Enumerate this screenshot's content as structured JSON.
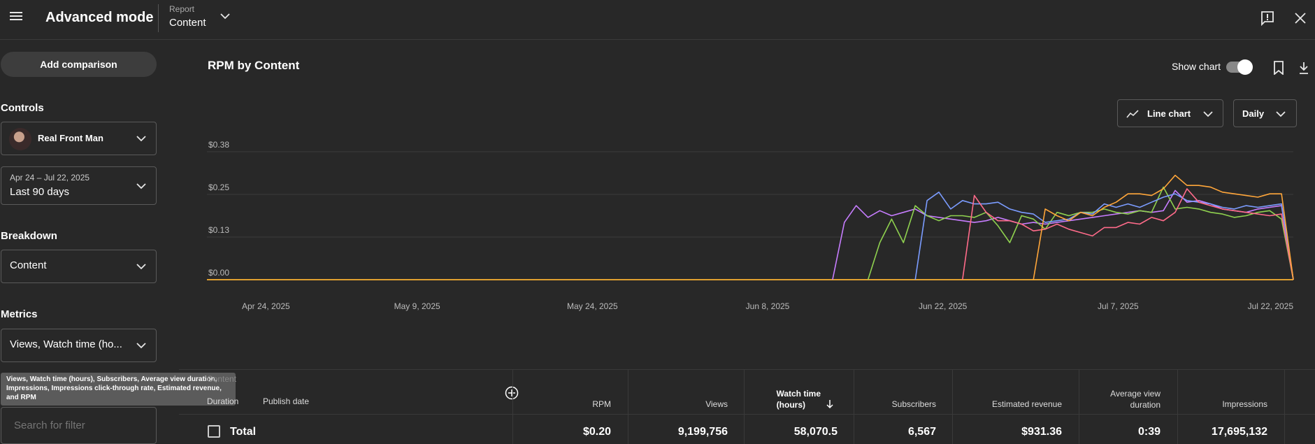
{
  "header": {
    "app_title": "Advanced mode",
    "report_label": "Report",
    "report_value": "Content"
  },
  "sidebar": {
    "add_comparison": "Add comparison",
    "controls_heading": "Controls",
    "channel_name": "Real Front Man",
    "date_range": "Apr 24 – Jul 22, 2025",
    "date_preset": "Last 90 days",
    "breakdown_heading": "Breakdown",
    "breakdown_value": "Content",
    "metrics_heading": "Metrics",
    "metrics_value": "Views, Watch time (ho...",
    "metrics_tooltip": "Views, Watch time (hours), Subscribers, Average view duration, Impressions, Impressions click-through rate, Estimated revenue, and RPM",
    "search_placeholder": "Search for filter"
  },
  "chart_panel": {
    "title": "RPM by Content",
    "show_chart_label": "Show chart",
    "chart_type_label": "Line chart",
    "interval_label": "Daily"
  },
  "chart_data": {
    "type": "line",
    "title": "RPM by Content",
    "ylim": [
      0,
      0.38
    ],
    "y_ticks": [
      "$0.38",
      "$0.25",
      "$0.13",
      "$0.00"
    ],
    "x_tick_labels": [
      "Apr 24, 2025",
      "May 9, 2025",
      "May 24, 2025",
      "Jun 8, 2025",
      "Jun 22, 2025",
      "Jul 7, 2025",
      "Jul 22, 2025"
    ],
    "x_start": "2025-04-24",
    "x_end": "2025-07-22",
    "grid": true,
    "series": [
      {
        "color": "#c77dff",
        "points": [
          [
            "2025-06-13",
            0
          ],
          [
            "2025-06-14",
            0.17
          ],
          [
            "2025-06-15",
            0.22
          ],
          [
            "2025-06-16",
            0.185
          ],
          [
            "2025-06-17",
            0.205
          ],
          [
            "2025-06-18",
            0.19
          ],
          [
            "2025-06-19",
            0.2
          ],
          [
            "2025-06-20",
            0.21
          ],
          [
            "2025-06-21",
            0.19
          ],
          [
            "2025-06-22",
            0.185
          ],
          [
            "2025-06-23",
            0.18
          ],
          [
            "2025-06-24",
            0.175
          ],
          [
            "2025-06-25",
            0.17
          ],
          [
            "2025-06-26",
            0.175
          ],
          [
            "2025-06-27",
            0.185
          ],
          [
            "2025-06-28",
            0.175
          ],
          [
            "2025-06-29",
            0.165
          ],
          [
            "2025-06-30",
            0.17
          ],
          [
            "2025-07-01",
            0.165
          ],
          [
            "2025-07-02",
            0.17
          ],
          [
            "2025-07-03",
            0.175
          ],
          [
            "2025-07-04",
            0.18
          ],
          [
            "2025-07-05",
            0.185
          ],
          [
            "2025-07-06",
            0.19
          ],
          [
            "2025-07-07",
            0.195
          ],
          [
            "2025-07-08",
            0.2
          ],
          [
            "2025-07-09",
            0.205
          ],
          [
            "2025-07-10",
            0.2
          ],
          [
            "2025-07-11",
            0.205
          ],
          [
            "2025-07-12",
            0.265
          ],
          [
            "2025-07-13",
            0.23
          ],
          [
            "2025-07-14",
            0.235
          ],
          [
            "2025-07-15",
            0.225
          ],
          [
            "2025-07-16",
            0.21
          ],
          [
            "2025-07-17",
            0.205
          ],
          [
            "2025-07-18",
            0.2
          ],
          [
            "2025-07-19",
            0.21
          ],
          [
            "2025-07-20",
            0.215
          ],
          [
            "2025-07-21",
            0.22
          ],
          [
            "2025-07-22",
            0
          ]
        ]
      },
      {
        "color": "#8fd14f",
        "points": [
          [
            "2025-06-16",
            0
          ],
          [
            "2025-06-17",
            0.11
          ],
          [
            "2025-06-18",
            0.18
          ],
          [
            "2025-06-19",
            0.11
          ],
          [
            "2025-06-20",
            0.22
          ],
          [
            "2025-06-21",
            0.19
          ],
          [
            "2025-06-22",
            0.175
          ],
          [
            "2025-06-23",
            0.19
          ],
          [
            "2025-06-24",
            0.19
          ],
          [
            "2025-06-25",
            0.185
          ],
          [
            "2025-06-26",
            0.2
          ],
          [
            "2025-06-27",
            0.16
          ],
          [
            "2025-06-28",
            0.11
          ],
          [
            "2025-06-29",
            0.19
          ],
          [
            "2025-06-30",
            0.18
          ],
          [
            "2025-07-01",
            0.15
          ],
          [
            "2025-07-02",
            0.2
          ],
          [
            "2025-07-03",
            0.19
          ],
          [
            "2025-07-04",
            0.2
          ],
          [
            "2025-07-05",
            0.2
          ],
          [
            "2025-07-06",
            0.21
          ],
          [
            "2025-07-07",
            0.2
          ],
          [
            "2025-07-08",
            0.195
          ],
          [
            "2025-07-09",
            0.205
          ],
          [
            "2025-07-10",
            0.2
          ],
          [
            "2025-07-11",
            0.275
          ],
          [
            "2025-07-12",
            0.21
          ],
          [
            "2025-07-13",
            0.215
          ],
          [
            "2025-07-14",
            0.21
          ],
          [
            "2025-07-15",
            0.2
          ],
          [
            "2025-07-16",
            0.195
          ],
          [
            "2025-07-17",
            0.185
          ],
          [
            "2025-07-18",
            0.19
          ],
          [
            "2025-07-19",
            0.2
          ],
          [
            "2025-07-20",
            0.205
          ],
          [
            "2025-07-21",
            0.18
          ],
          [
            "2025-07-22",
            0
          ]
        ]
      },
      {
        "color": "#7b9cff",
        "points": [
          [
            "2025-06-20",
            0
          ],
          [
            "2025-06-21",
            0.235
          ],
          [
            "2025-06-22",
            0.26
          ],
          [
            "2025-06-23",
            0.21
          ],
          [
            "2025-06-24",
            0.235
          ],
          [
            "2025-06-25",
            0.225
          ],
          [
            "2025-06-26",
            0.225
          ],
          [
            "2025-06-27",
            0.23
          ],
          [
            "2025-06-28",
            0.21
          ],
          [
            "2025-06-29",
            0.2
          ],
          [
            "2025-06-30",
            0.195
          ],
          [
            "2025-07-01",
            0.17
          ],
          [
            "2025-07-02",
            0.175
          ],
          [
            "2025-07-03",
            0.18
          ],
          [
            "2025-07-04",
            0.2
          ],
          [
            "2025-07-05",
            0.195
          ],
          [
            "2025-07-06",
            0.225
          ],
          [
            "2025-07-07",
            0.215
          ],
          [
            "2025-07-08",
            0.225
          ],
          [
            "2025-07-09",
            0.215
          ],
          [
            "2025-07-10",
            0.23
          ],
          [
            "2025-07-11",
            0.245
          ],
          [
            "2025-07-12",
            0.255
          ],
          [
            "2025-07-13",
            0.235
          ],
          [
            "2025-07-14",
            0.23
          ],
          [
            "2025-07-15",
            0.225
          ],
          [
            "2025-07-16",
            0.215
          ],
          [
            "2025-07-17",
            0.21
          ],
          [
            "2025-07-18",
            0.22
          ],
          [
            "2025-07-19",
            0.215
          ],
          [
            "2025-07-20",
            0.22
          ],
          [
            "2025-07-21",
            0.225
          ],
          [
            "2025-07-22",
            0
          ]
        ]
      },
      {
        "color": "#ff6b8a",
        "points": [
          [
            "2025-06-24",
            0
          ],
          [
            "2025-06-25",
            0.25
          ],
          [
            "2025-06-26",
            0.2
          ],
          [
            "2025-06-27",
            0.175
          ],
          [
            "2025-06-28",
            0.175
          ],
          [
            "2025-06-29",
            0.165
          ],
          [
            "2025-06-30",
            0.145
          ],
          [
            "2025-07-01",
            0.15
          ],
          [
            "2025-07-02",
            0.165
          ],
          [
            "2025-07-03",
            0.15
          ],
          [
            "2025-07-04",
            0.14
          ],
          [
            "2025-07-05",
            0.13
          ],
          [
            "2025-07-06",
            0.155
          ],
          [
            "2025-07-07",
            0.155
          ],
          [
            "2025-07-08",
            0.17
          ],
          [
            "2025-07-09",
            0.165
          ],
          [
            "2025-07-10",
            0.185
          ],
          [
            "2025-07-11",
            0.175
          ],
          [
            "2025-07-12",
            0.2
          ],
          [
            "2025-07-13",
            0.27
          ],
          [
            "2025-07-14",
            0.23
          ],
          [
            "2025-07-15",
            0.22
          ],
          [
            "2025-07-16",
            0.21
          ],
          [
            "2025-07-17",
            0.205
          ],
          [
            "2025-07-18",
            0.2
          ],
          [
            "2025-07-19",
            0.195
          ],
          [
            "2025-07-20",
            0.19
          ],
          [
            "2025-07-21",
            0.195
          ],
          [
            "2025-07-22",
            0
          ]
        ]
      },
      {
        "color": "#ffa63a",
        "points": [
          [
            "2025-06-30",
            0
          ],
          [
            "2025-07-01",
            0.21
          ],
          [
            "2025-07-02",
            0.19
          ],
          [
            "2025-07-03",
            0.175
          ],
          [
            "2025-07-04",
            0.2
          ],
          [
            "2025-07-05",
            0.19
          ],
          [
            "2025-07-06",
            0.215
          ],
          [
            "2025-07-07",
            0.23
          ],
          [
            "2025-07-08",
            0.255
          ],
          [
            "2025-07-09",
            0.255
          ],
          [
            "2025-07-10",
            0.25
          ],
          [
            "2025-07-11",
            0.27
          ],
          [
            "2025-07-12",
            0.31
          ],
          [
            "2025-07-13",
            0.28
          ],
          [
            "2025-07-14",
            0.28
          ],
          [
            "2025-07-15",
            0.275
          ],
          [
            "2025-07-16",
            0.26
          ],
          [
            "2025-07-17",
            0.255
          ],
          [
            "2025-07-18",
            0.25
          ],
          [
            "2025-07-19",
            0.245
          ],
          [
            "2025-07-20",
            0.255
          ],
          [
            "2025-07-21",
            0.255
          ],
          [
            "2025-07-22",
            0
          ]
        ]
      }
    ]
  },
  "table": {
    "content_label": "Content",
    "duration_label": "Duration",
    "publish_date_label": "Publish date",
    "columns": [
      "RPM",
      "Views",
      "Watch time (hours)",
      "Subscribers",
      "Estimated revenue",
      "Average view duration",
      "Impressions"
    ],
    "watch_time_l1": "Watch time",
    "watch_time_l2": "(hours)",
    "avg_view_l1": "Average view",
    "avg_view_l2": "duration",
    "total_label": "Total",
    "total_values": [
      "$0.20",
      "9,199,756",
      "58,070.5",
      "6,567",
      "$931.36",
      "0:39",
      "17,695,132"
    ]
  },
  "colors": {
    "background": "#282828",
    "grid": "#3d3d3d"
  }
}
